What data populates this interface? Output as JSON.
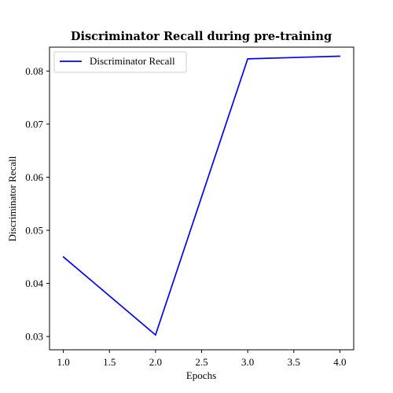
{
  "chart_data": {
    "type": "line",
    "title": "Discriminator Recall during pre-training",
    "xlabel": "Epochs",
    "ylabel": "Discriminator Recall",
    "xlim": [
      0.85,
      4.15
    ],
    "ylim": [
      0.0275,
      0.0845
    ],
    "xticks": [
      1.0,
      1.5,
      2.0,
      2.5,
      3.0,
      3.5,
      4.0
    ],
    "xtick_labels": [
      "1.0",
      "1.5",
      "2.0",
      "2.5",
      "3.0",
      "3.5",
      "4.0"
    ],
    "yticks": [
      0.03,
      0.04,
      0.05,
      0.06,
      0.07,
      0.08
    ],
    "ytick_labels": [
      "0.03",
      "0.04",
      "0.05",
      "0.06",
      "0.07",
      "0.08"
    ],
    "grid": false,
    "legend_position": "top-left",
    "series": [
      {
        "name": "Discriminator Recall",
        "color": "#0000ff",
        "x": [
          1.0,
          2.0,
          3.0,
          4.0
        ],
        "y": [
          0.045,
          0.0303,
          0.0823,
          0.0828
        ]
      }
    ]
  }
}
